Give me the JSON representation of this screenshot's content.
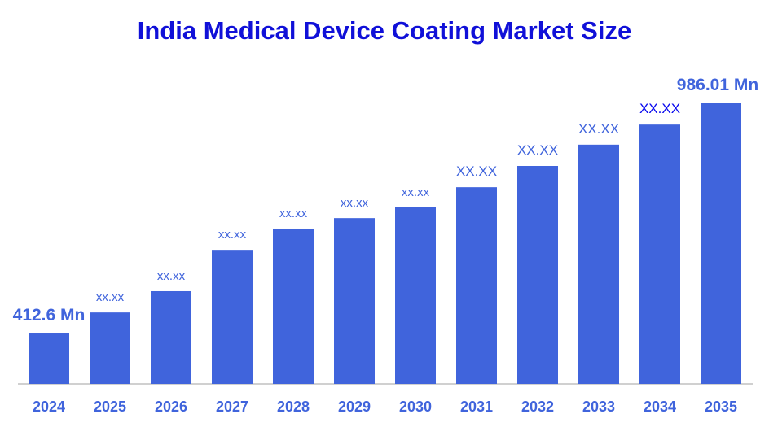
{
  "chart_data": {
    "type": "bar",
    "title": "India Medical Device Coating Market Size",
    "xlabel": "",
    "ylabel": "",
    "categories": [
      "2024",
      "2025",
      "2026",
      "2027",
      "2028",
      "2029",
      "2030",
      "2031",
      "2032",
      "2033",
      "2034",
      "2035"
    ],
    "values": [
      412.6,
      465,
      518,
      621,
      674,
      700,
      727,
      777,
      830,
      883,
      933,
      986.01
    ],
    "data_labels": [
      "412.6 Mn",
      "xx.xx",
      "xx.xx",
      "xx.xx",
      "xx.xx",
      "xx.xx",
      "xx.xx",
      "XX.XX",
      "XX.XX",
      "XX.XX",
      "XX.XX",
      "986.01 Mn"
    ],
    "ylim": [
      287,
      1000
    ],
    "grid": false,
    "legend": "none",
    "colors": {
      "bar": "#4064dc",
      "label": "#4064dc",
      "label_highlight": "#0a0aee",
      "title": "#1010d8",
      "axis": "#d0d0d0"
    }
  }
}
